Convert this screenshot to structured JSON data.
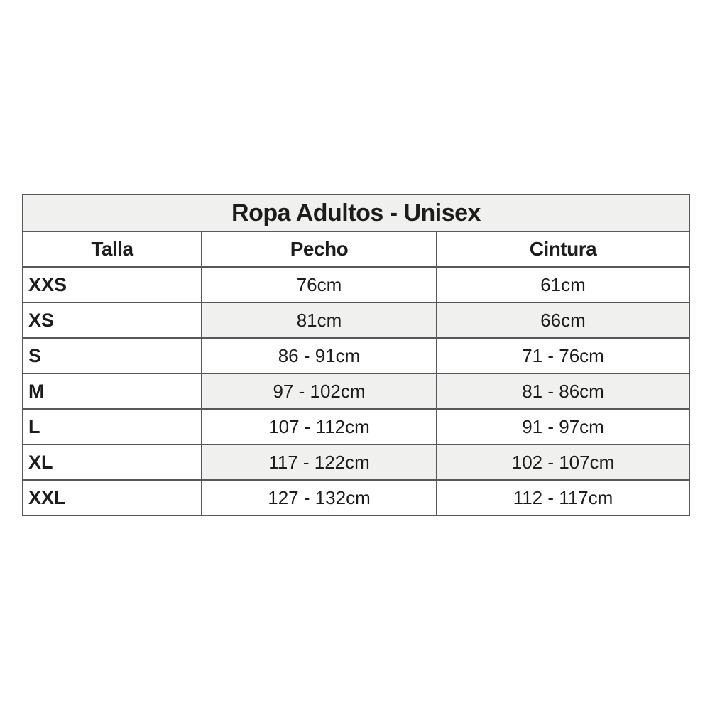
{
  "chart_data": {
    "type": "table",
    "title": "Ropa Adultos - Unisex",
    "columns": [
      "Talla",
      "Pecho",
      "Cintura"
    ],
    "rows": [
      [
        "XXS",
        "76cm",
        "61cm"
      ],
      [
        "XS",
        "81cm",
        "66cm"
      ],
      [
        "S",
        "86 - 91cm",
        "71 - 76cm"
      ],
      [
        "M",
        "97 - 102cm",
        "81 - 86cm"
      ],
      [
        "L",
        "107 - 112cm",
        "91 - 97cm"
      ],
      [
        "XL",
        "117 - 122cm",
        "102 - 107cm"
      ],
      [
        "XXL",
        "127 - 132cm",
        "112 - 117cm"
      ]
    ],
    "layout": {
      "shaded_row_labels": [
        "XS",
        "M",
        "XL"
      ],
      "shaded_bg": "#f0f0ee",
      "title_bg": "#f0f0ee",
      "border_color": "#58585a",
      "background": "#ffffff"
    }
  }
}
